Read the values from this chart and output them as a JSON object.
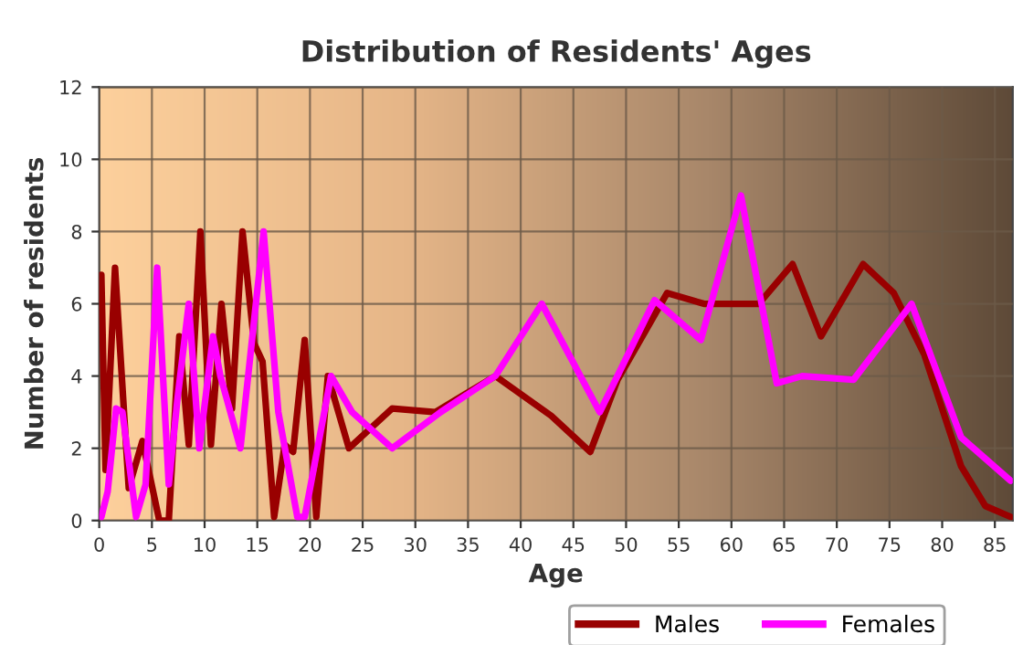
{
  "chart_data": {
    "type": "line",
    "title": "Distribution of Residents' Ages",
    "xlabel": "Age",
    "ylabel": "Number of residents",
    "xlim": [
      0,
      86.7
    ],
    "ylim": [
      0,
      12
    ],
    "xticks": [
      0,
      5,
      10,
      15,
      20,
      25,
      30,
      35,
      40,
      45,
      50,
      55,
      60,
      65,
      70,
      75,
      80,
      85
    ],
    "yticks": [
      0,
      2,
      4,
      6,
      8,
      10,
      12
    ],
    "grid": true,
    "legend": "bottom",
    "line_style": "solid",
    "marker": "none",
    "series": [
      {
        "name": "Males",
        "color": "#990000",
        "x": [
          0.2,
          0.6,
          1.5,
          2.8,
          4.1,
          5.7,
          6.6,
          7.6,
          8.5,
          9.6,
          10.6,
          11.6,
          12.6,
          13.6,
          14.7,
          15.5,
          16.6,
          17.6,
          18.4,
          19.5,
          20.6,
          21.7,
          23.7,
          27.8,
          31.9,
          37.6,
          42.9,
          46.6,
          49.2,
          53.9,
          57.4,
          62.6,
          65.8,
          68.5,
          72.5,
          75.4,
          78.3,
          81.8,
          84.1,
          86.5
        ],
        "values": [
          6.8,
          1.4,
          7.0,
          0.9,
          2.2,
          0,
          0,
          5.1,
          2.1,
          8.0,
          2.1,
          6.0,
          3.1,
          8.0,
          4.9,
          4.4,
          0.1,
          2.1,
          1.9,
          5.0,
          0.1,
          4.0,
          2.0,
          3.1,
          3.0,
          4.0,
          2.9,
          1.9,
          3.9,
          6.3,
          6.0,
          6.0,
          7.1,
          5.1,
          7.1,
          6.3,
          4.6,
          1.5,
          0.4,
          0.1
        ]
      },
      {
        "name": "Females",
        "color": "#ff00ff",
        "x": [
          0.2,
          0.8,
          1.6,
          2.2,
          3.5,
          4.4,
          5.5,
          6.6,
          7.4,
          8.5,
          9.5,
          10.8,
          11.5,
          13.4,
          15.6,
          17.0,
          18.8,
          19.5,
          22.0,
          24.0,
          27.8,
          32.4,
          37.6,
          42.0,
          47.5,
          52.7,
          57.1,
          60.9,
          64.3,
          66.7,
          71.6,
          77.1,
          81.8,
          86.5
        ],
        "values": [
          0.1,
          0.8,
          3.1,
          3.0,
          0.1,
          1.0,
          7.0,
          1.0,
          3.3,
          6.0,
          2.0,
          5.1,
          4.0,
          2.0,
          8.0,
          3.0,
          0.1,
          0.1,
          4.0,
          3.0,
          2.0,
          3.0,
          4.0,
          6.0,
          3.0,
          6.1,
          5.0,
          9.0,
          3.8,
          4.0,
          3.9,
          6.0,
          2.3,
          1.1
        ]
      }
    ]
  }
}
